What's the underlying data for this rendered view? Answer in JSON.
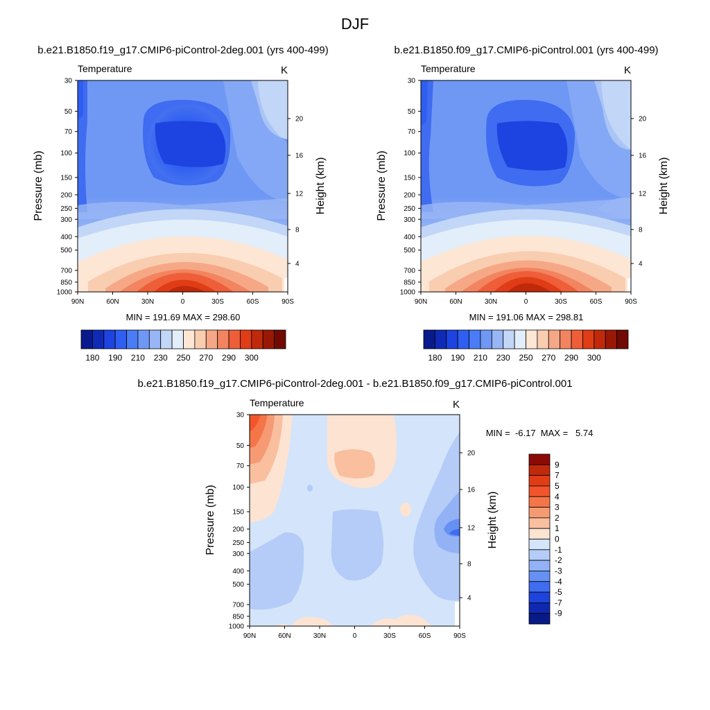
{
  "page_title": "DJF",
  "chart_data": [
    {
      "type": "heatmap",
      "title": "b.e21.B1850.f19_g17.CMIP6-piControl-2deg.001 (yrs 400-499)",
      "variable": "Temperature",
      "units": "K",
      "ylabel": "Pressure (mb)",
      "ylabel_right": "Height (km)",
      "x_ticks": [
        "90N",
        "60N",
        "30N",
        "0",
        "30S",
        "60S",
        "90S"
      ],
      "y_ticks": [
        "30",
        "50",
        "70",
        "100",
        "150",
        "200",
        "250",
        "300",
        "400",
        "500",
        "700",
        "850",
        "1000"
      ],
      "y_ticks_right": [
        "20",
        "16",
        "12",
        "8",
        "4"
      ],
      "min_max_text": "MIN = 191.69  MAX = 298.60",
      "min": 191.69,
      "max": 298.6,
      "colorbar_labels": [
        "180",
        "190",
        "210",
        "230",
        "250",
        "270",
        "290",
        "300"
      ],
      "colorbar_colors": [
        "#0a1a8c",
        "#0f2bb5",
        "#1d43e0",
        "#2f5ff0",
        "#4a7cf5",
        "#6f98f5",
        "#98b6f5",
        "#c2d6f7",
        "#e3eefb",
        "#fde6d4",
        "#f9cdb0",
        "#f6a886",
        "#f28460",
        "#ee5e38",
        "#e03c16",
        "#c02a0a",
        "#9a1806",
        "#700a03"
      ],
      "contour_note": "Cold tropical tropopause near 100 mb, warm surface maximum near equator"
    },
    {
      "type": "heatmap",
      "title": "b.e21.B1850.f09_g17.CMIP6-piControl.001 (yrs 400-499)",
      "variable": "Temperature",
      "units": "K",
      "ylabel": "Pressure (mb)",
      "ylabel_right": "Height (km)",
      "x_ticks": [
        "90N",
        "60N",
        "30N",
        "0",
        "30S",
        "60S",
        "90S"
      ],
      "y_ticks": [
        "30",
        "50",
        "70",
        "100",
        "150",
        "200",
        "250",
        "300",
        "400",
        "500",
        "700",
        "850",
        "1000"
      ],
      "y_ticks_right": [
        "20",
        "16",
        "12",
        "8",
        "4"
      ],
      "min_max_text": "MIN = 191.06  MAX = 298.81",
      "min": 191.06,
      "max": 298.81,
      "colorbar_labels": [
        "180",
        "190",
        "210",
        "230",
        "250",
        "270",
        "290",
        "300"
      ]
    },
    {
      "type": "heatmap",
      "title": "b.e21.B1850.f19_g17.CMIP6-piControl-2deg.001 - b.e21.B1850.f09_g17.CMIP6-piControl.001",
      "variable": "Temperature",
      "units": "K",
      "ylabel": "Pressure (mb)",
      "ylabel_right": "Height (km)",
      "x_ticks": [
        "90N",
        "60N",
        "30N",
        "0",
        "30S",
        "60S",
        "90S"
      ],
      "y_ticks": [
        "30",
        "50",
        "70",
        "100",
        "150",
        "200",
        "250",
        "300",
        "400",
        "500",
        "700",
        "850",
        "1000"
      ],
      "y_ticks_right": [
        "20",
        "16",
        "12",
        "8",
        "4"
      ],
      "min_max_text": "MIN =  -6.17  MAX =   5.74",
      "min": -6.17,
      "max": 5.74,
      "colorbar_labels": [
        "9",
        "7",
        "5",
        "4",
        "3",
        "2",
        "1",
        "0",
        "-1",
        "-2",
        "-3",
        "-4",
        "-5",
        "-7",
        "-9"
      ],
      "colorbar_colors": [
        "#8c0a05",
        "#c02a0a",
        "#e03c16",
        "#f2552c",
        "#f47648",
        "#f69a74",
        "#f9bf9f",
        "#fde3d2",
        "#d4e4fb",
        "#b4ccf7",
        "#92b2f5",
        "#6690f3",
        "#3f6cf0",
        "#1f44dd",
        "#0f28b0",
        "#081a86"
      ]
    }
  ]
}
